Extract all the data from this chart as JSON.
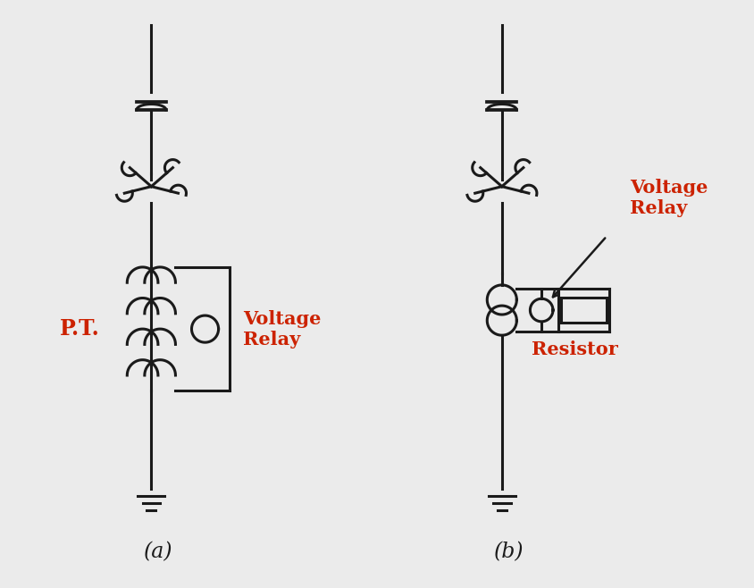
{
  "bg_color": "#ebebeb",
  "line_color": "#1a1a1a",
  "text_color_red": "#cc2200",
  "label_a": "(a)",
  "label_b": "(b)",
  "pt_label": "P.T.",
  "voltage_relay_label": "Voltage\nRelay",
  "resistor_label": "Resistor"
}
